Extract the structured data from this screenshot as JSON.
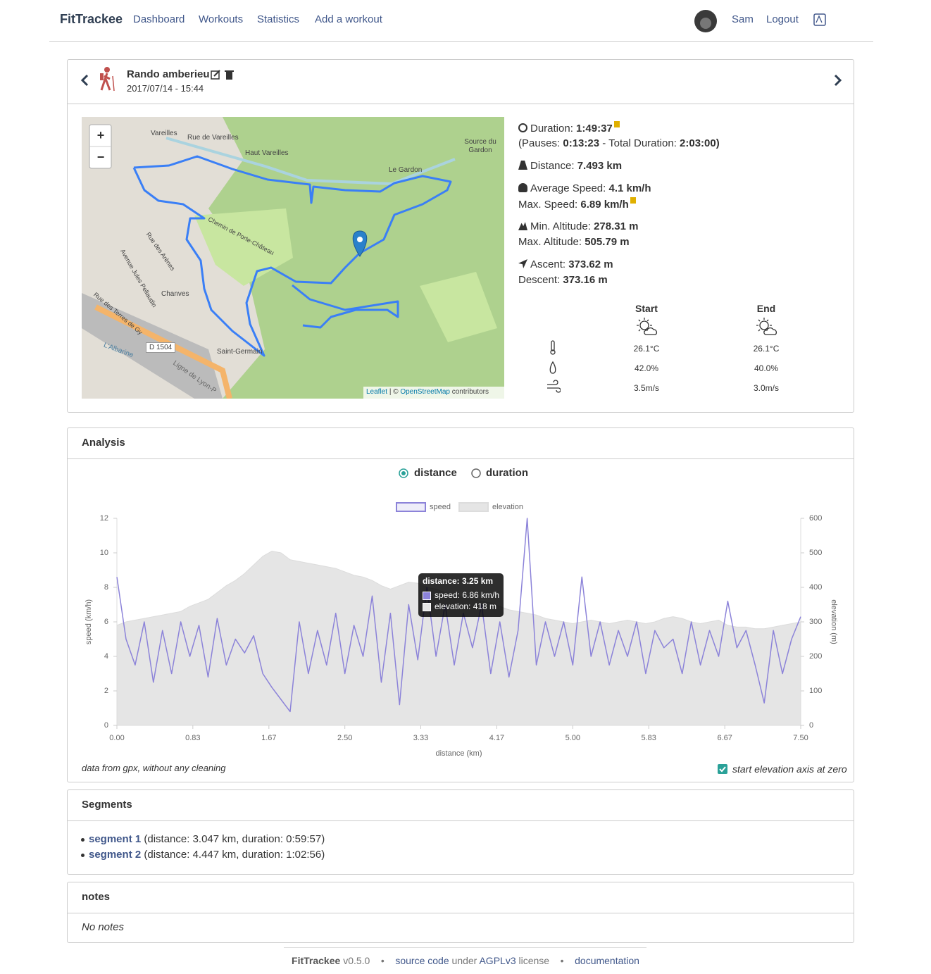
{
  "navbar": {
    "brand": "FitTrackee",
    "links": [
      "Dashboard",
      "Workouts",
      "Statistics",
      "Add a workout"
    ],
    "user": "Sam",
    "logout": "Logout"
  },
  "workout": {
    "title": "Rando amberieu",
    "date": "2017/07/14 - 15:44",
    "stats": {
      "duration": {
        "label": "Duration:",
        "value": "1:49:37"
      },
      "pauses": {
        "open": "(Pauses:",
        "value": "0:13:23",
        "sep": "- Total Duration:",
        "total": "2:03:00",
        "close": ")"
      },
      "distance": {
        "label": "Distance:",
        "value": "7.493 km"
      },
      "avg_speed": {
        "label": "Average Speed:",
        "value": "4.1 km/h"
      },
      "max_speed": {
        "label": "Max. Speed:",
        "value": "6.89 km/h"
      },
      "min_alt": {
        "label": "Min. Altitude:",
        "value": "278.31 m"
      },
      "max_alt": {
        "label": "Max. Altitude:",
        "value": "505.79 m"
      },
      "ascent": {
        "label": "Ascent:",
        "value": "373.62 m"
      },
      "descent": {
        "label": "Descent:",
        "value": "373.16 m"
      }
    },
    "weather": {
      "headers": [
        "Start",
        "End"
      ],
      "rows": [
        [
          "26.1°C",
          "26.1°C"
        ],
        [
          "42.0%",
          "40.0%"
        ],
        [
          "3.5m/s",
          "3.0m/s"
        ]
      ]
    },
    "map": {
      "zoom_in": "+",
      "zoom_out": "−",
      "labels": [
        "Vareilles",
        "Rue de Vareilles",
        "Haut Vareilles",
        "Source du Gardon",
        "Le Gardon",
        "Chemin de Porte-Château",
        "Rue des Arènes",
        "Avenue Jules Pellaudin",
        "Chanves",
        "Rue des Terres de Gy",
        "D 1504",
        "L'Albarine",
        "Saint-Germain",
        "Ligne de Lyon-P"
      ],
      "attribution": {
        "leaflet": "Leaflet",
        "sep": "| ©",
        "osm": "OpenStreetMap",
        "rest": "contributors"
      }
    }
  },
  "analysis": {
    "title": "Analysis",
    "options": [
      "distance",
      "duration"
    ],
    "note": "data from gpx, without any cleaning",
    "checkbox": "start elevation axis at zero"
  },
  "chart_data": {
    "type": "line",
    "x_label": "distance (km)",
    "y_label": "speed (km/h)",
    "y2_label": "elevation (m)",
    "legend": "top",
    "grid": false,
    "x": [
      0,
      0.1,
      0.2,
      0.3,
      0.4,
      0.5,
      0.6,
      0.7,
      0.8,
      0.9,
      1.0,
      1.1,
      1.2,
      1.3,
      1.4,
      1.5,
      1.6,
      1.7,
      1.8,
      1.9,
      2.0,
      2.1,
      2.2,
      2.3,
      2.4,
      2.5,
      2.6,
      2.7,
      2.8,
      2.9,
      3.0,
      3.1,
      3.2,
      3.3,
      3.4,
      3.5,
      3.6,
      3.7,
      3.8,
      3.9,
      4.0,
      4.1,
      4.2,
      4.3,
      4.4,
      4.5,
      4.6,
      4.7,
      4.8,
      4.9,
      5.0,
      5.1,
      5.2,
      5.3,
      5.4,
      5.5,
      5.6,
      5.7,
      5.8,
      5.9,
      6.0,
      6.1,
      6.2,
      6.3,
      6.4,
      6.5,
      6.6,
      6.7,
      6.8,
      6.9,
      7.0,
      7.1,
      7.2,
      7.3,
      7.4,
      7.5
    ],
    "series": [
      {
        "name": "elevation",
        "color": "#e5e5e5",
        "axis": "y2",
        "fill": true,
        "values": [
          290,
          300,
          305,
          310,
          315,
          320,
          325,
          330,
          345,
          355,
          365,
          385,
          405,
          420,
          440,
          465,
          490,
          505,
          500,
          480,
          475,
          470,
          465,
          460,
          455,
          445,
          435,
          430,
          420,
          405,
          395,
          405,
          415,
          412,
          400,
          395,
          385,
          380,
          370,
          365,
          360,
          355,
          345,
          335,
          330,
          325,
          320,
          310,
          305,
          300,
          295,
          300,
          305,
          300,
          295,
          300,
          305,
          300,
          295,
          300,
          310,
          315,
          310,
          300,
          295,
          300,
          305,
          290,
          285,
          285,
          280,
          280,
          285,
          290,
          295,
          300
        ]
      },
      {
        "name": "speed",
        "color": "#8c83d9",
        "values": [
          8.6,
          5.0,
          3.5,
          6.0,
          2.5,
          5.5,
          3.0,
          6.0,
          4.0,
          5.8,
          2.8,
          6.2,
          3.5,
          5.0,
          4.2,
          5.2,
          3.0,
          2.2,
          1.5,
          0.8,
          6.0,
          3.0,
          5.5,
          3.5,
          6.5,
          3.0,
          5.8,
          4.0,
          7.5,
          2.5,
          6.5,
          1.2,
          7.0,
          3.8,
          8.0,
          4.0,
          7.0,
          3.5,
          6.5,
          4.5,
          7.0,
          3.0,
          6.0,
          2.8,
          5.5,
          12.0,
          3.5,
          6.0,
          4.0,
          6.0,
          3.5,
          8.6,
          4.0,
          6.0,
          3.5,
          5.5,
          4.0,
          6.0,
          3.0,
          5.5,
          4.5,
          5.0,
          3.0,
          6.0,
          3.5,
          5.5,
          4.0,
          7.2,
          4.5,
          5.5,
          3.5,
          1.3,
          5.5,
          3.0,
          5.0,
          6.3
        ]
      }
    ],
    "xlim": [
      0,
      7.5
    ],
    "xticks": [
      {
        "value": 0,
        "label": "0.00"
      },
      {
        "value": 0.833,
        "label": "0.83"
      },
      {
        "value": 1.667,
        "label": "1.67"
      },
      {
        "value": 2.5,
        "label": "2.50"
      },
      {
        "value": 3.333,
        "label": "3.33"
      },
      {
        "value": 4.167,
        "label": "4.17"
      },
      {
        "value": 5,
        "label": "5.00"
      },
      {
        "value": 5.833,
        "label": "5.83"
      },
      {
        "value": 6.667,
        "label": "6.67"
      },
      {
        "value": 7.5,
        "label": "7.50"
      }
    ],
    "ylim": [
      0,
      12
    ],
    "yticks": [
      0,
      2,
      4,
      6,
      8,
      10,
      12
    ],
    "y2lim": [
      0,
      600
    ],
    "y2ticks": [
      0,
      100,
      200,
      300,
      400,
      500,
      600
    ],
    "tooltip": {
      "title": "distance: 3.25 km",
      "lines": [
        "speed: 6.86 km/h",
        "elevation: 418 m"
      ]
    }
  },
  "segments": {
    "title": "Segments",
    "items": [
      {
        "name": "segment 1",
        "details": "(distance: 3.047 km, duration: 0:59:57)"
      },
      {
        "name": "segment 2",
        "details": "(distance: 4.447 km, duration: 1:02:56)"
      }
    ]
  },
  "notes": {
    "title": "notes",
    "text": "No notes"
  },
  "footer": {
    "brand": "FitTrackee",
    "version": "v0.5.0",
    "separator": "•",
    "source": "source code",
    "under": "under",
    "license_name": "AGPLv3",
    "license": "license",
    "docs": "documentation"
  }
}
